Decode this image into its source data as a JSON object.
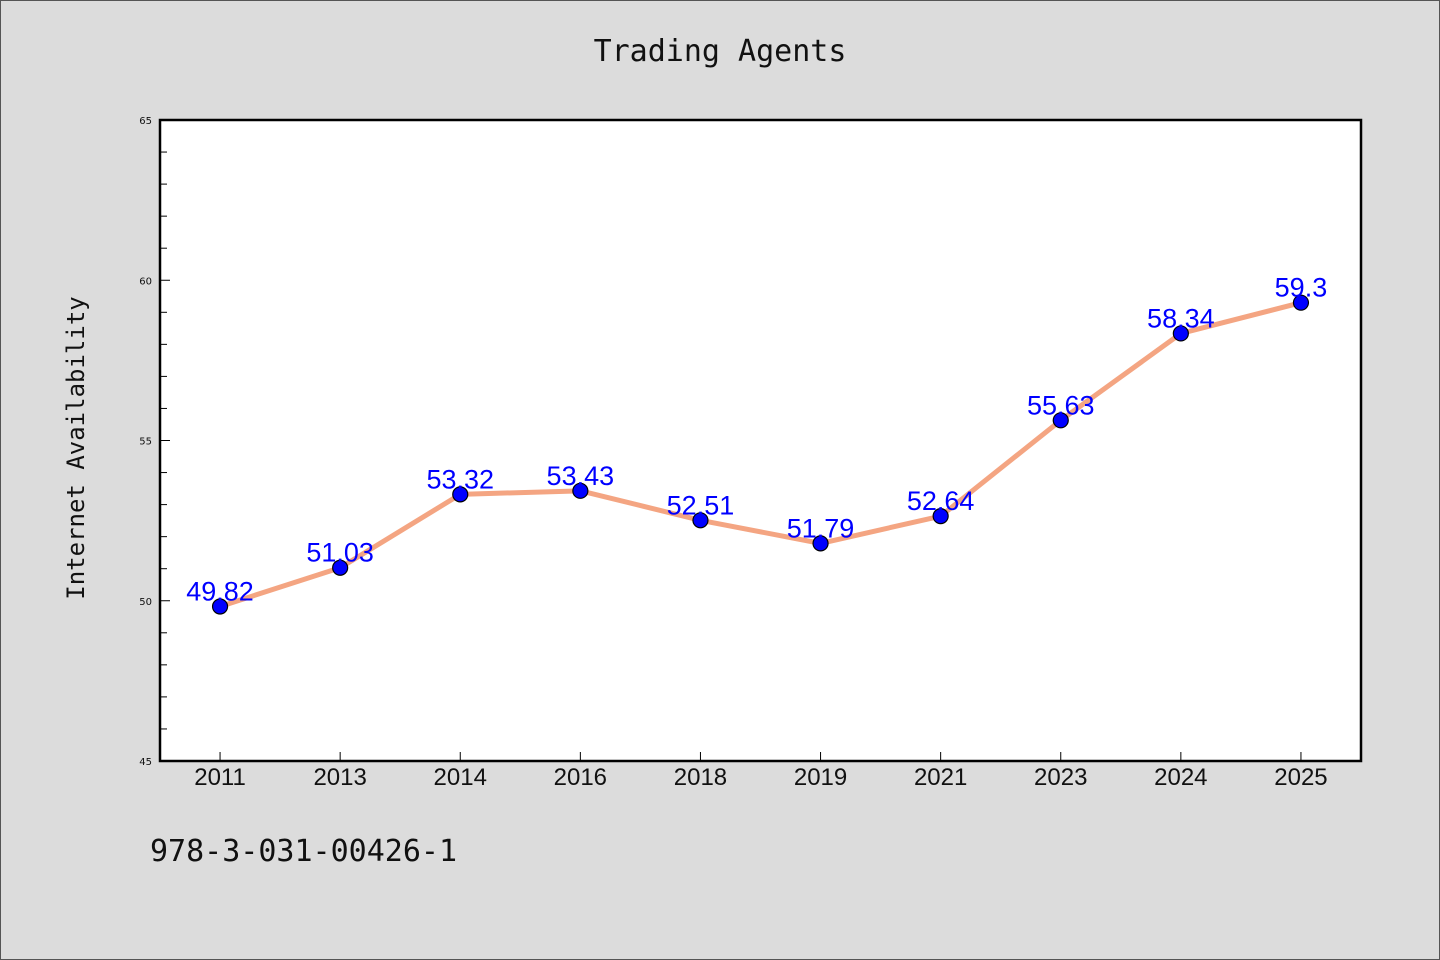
{
  "chart_data": {
    "type": "line",
    "title": "Trading Agents",
    "xlabel": "",
    "ylabel": "Internet Availability",
    "categories": [
      "2011",
      "2013",
      "2014",
      "2016",
      "2018",
      "2019",
      "2021",
      "2023",
      "2024",
      "2025"
    ],
    "series": [
      {
        "values": [
          49.82,
          51.03,
          53.32,
          53.43,
          52.51,
          51.79,
          52.64,
          55.63,
          58.34,
          59.3
        ],
        "labels": [
          "49.82",
          "51.03",
          "53.32",
          "53.43",
          "52.51",
          "51.79",
          "52.64",
          "55.63",
          "58.34",
          "59.3"
        ],
        "line_color": "#f4a582",
        "marker_color": "#0000ff"
      }
    ],
    "ylim": [
      45,
      65
    ],
    "yticks": [
      "45",
      "50",
      "55",
      "60",
      "65"
    ],
    "grid": false,
    "legend": "none"
  },
  "footer": {
    "code": "978-3-031-00426-1"
  }
}
